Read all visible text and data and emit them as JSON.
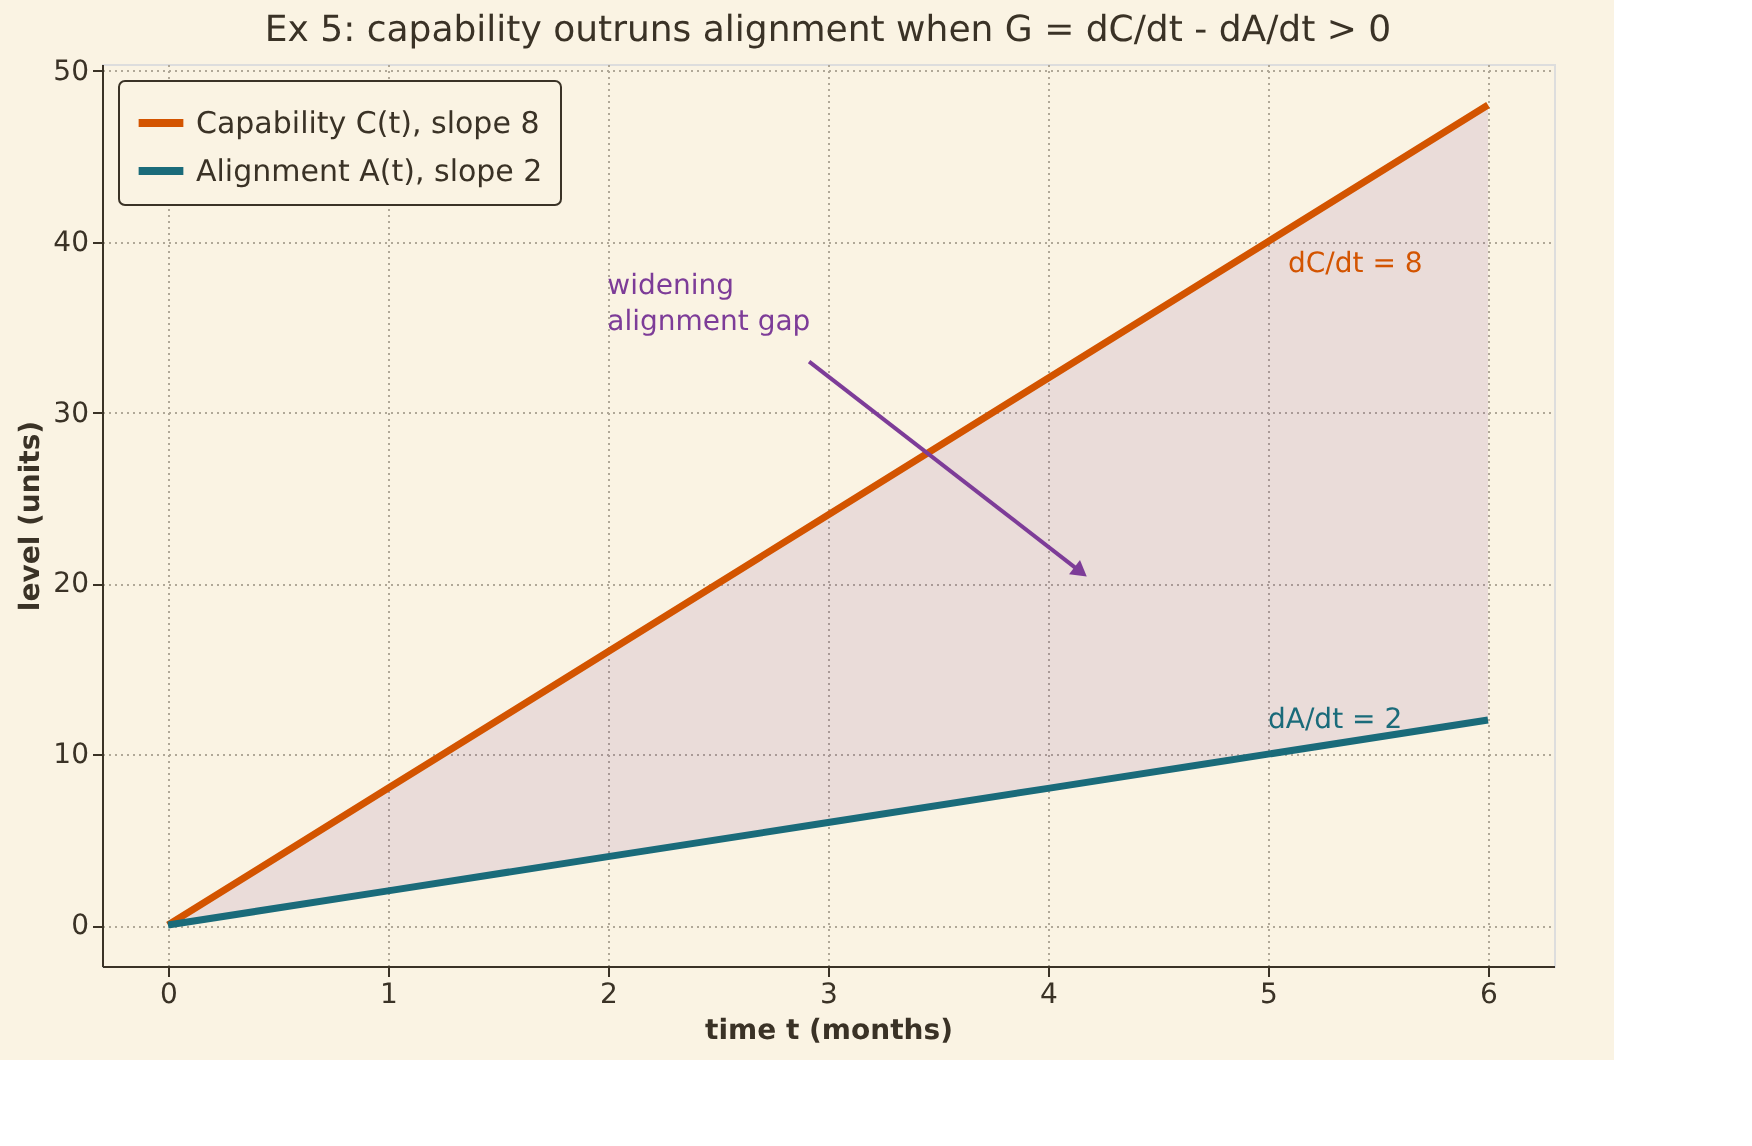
{
  "chart_data": {
    "type": "line",
    "title": "Ex 5: capability outruns alignment when G = dC/dt - dA/dt > 0",
    "xlabel": "time t (months)",
    "ylabel": "level (units)",
    "x": [
      0,
      1,
      2,
      3,
      4,
      5,
      6
    ],
    "series": [
      {
        "name": "Capability C(t), slope 8",
        "color": "#d35400",
        "values": [
          0,
          8,
          16,
          24,
          32,
          40,
          48
        ],
        "lower": [
          0,
          2,
          4,
          6,
          8,
          10,
          12
        ],
        "upper": [
          0,
          8,
          16,
          24,
          32,
          40,
          48
        ]
      },
      {
        "name": "Alignment A(t), slope 2",
        "color": "#1a6b7a",
        "values": [
          0,
          2,
          4,
          6,
          8,
          10,
          12
        ]
      }
    ],
    "annotations": [
      "dC/dt = 8",
      "dA/dt = 2",
      "widening\nalignment gap"
    ],
    "xlim": [
      -0.3,
      6.3
    ],
    "ylim": [
      -2.4,
      50.4
    ],
    "xticks": [
      0,
      1,
      2,
      3,
      4,
      5,
      6
    ],
    "yticks": [
      0,
      10,
      20,
      30,
      40,
      50
    ],
    "grid": true,
    "legend": "top left",
    "marker": "none",
    "line_style": "solid"
  }
}
